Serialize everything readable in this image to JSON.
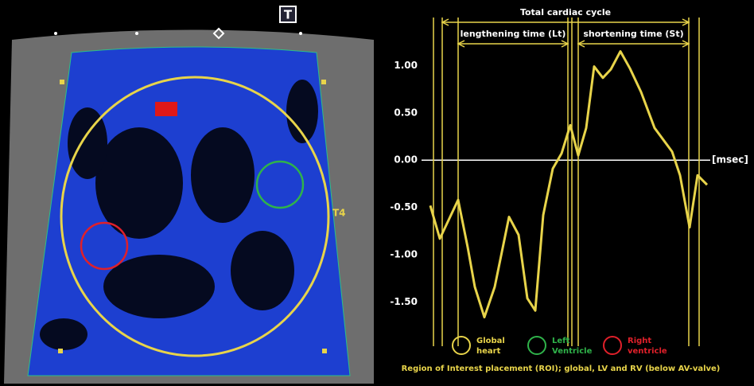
{
  "chart_data": {
    "type": "line",
    "x": [
      0,
      12,
      35,
      47,
      56,
      68,
      81,
      99,
      111,
      122,
      132,
      142,
      154,
      165,
      176,
      186,
      196,
      206,
      217,
      227,
      239,
      251,
      265,
      282,
      304,
      314,
      326,
      336,
      348
    ],
    "xlim": [
      0,
      348
    ],
    "series": [
      {
        "name": "Global heart",
        "color": "#e8d44a",
        "values": [
          -0.48,
          -0.83,
          -0.42,
          -0.92,
          -1.34,
          -1.66,
          -1.34,
          -0.6,
          -0.79,
          -1.46,
          -1.59,
          -0.58,
          -0.09,
          0.07,
          0.37,
          0.05,
          0.34,
          0.99,
          0.87,
          0.96,
          1.15,
          0.97,
          0.72,
          0.34,
          0.09,
          -0.16,
          -0.71,
          -0.16,
          -0.26
        ]
      }
    ],
    "ylim": [
      -1.95,
      1.55
    ],
    "yticks": [
      {
        "value": 1,
        "label": "1.00"
      },
      {
        "value": 0.5,
        "label": "0.50"
      },
      {
        "value": 0,
        "label": "0.00"
      },
      {
        "value": -0.5,
        "label": "-0.50"
      },
      {
        "value": -1,
        "label": "-1.00"
      },
      {
        "value": -1.5,
        "label": "-1.50"
      }
    ],
    "hline": 0,
    "x_unit_label": "[msec]",
    "vlines": [
      4,
      15,
      35,
      173,
      178,
      186,
      325,
      338
    ],
    "annotations": [
      {
        "label": "Total cardiac cycle",
        "start": 15,
        "end": 325,
        "row": 0
      },
      {
        "label": "lengthening time (Lt)",
        "start": 35,
        "end": 173,
        "row": 1
      },
      {
        "label": "shortening time (St)",
        "start": 186,
        "end": 325,
        "row": 1
      }
    ],
    "legend": [
      {
        "lines": [
          "Global",
          "heart"
        ],
        "color": "#e8d44a"
      },
      {
        "lines": [
          "Left",
          "Ventricle"
        ],
        "color": "#2fb34a"
      },
      {
        "lines": [
          "Right",
          "ventricle"
        ],
        "color": "#e0202a"
      }
    ],
    "caption": "Region of Interest placement (ROI); global, LV and RV (below AV-valve)"
  },
  "image_labels": {
    "icon": "T",
    "roi": "T4"
  }
}
